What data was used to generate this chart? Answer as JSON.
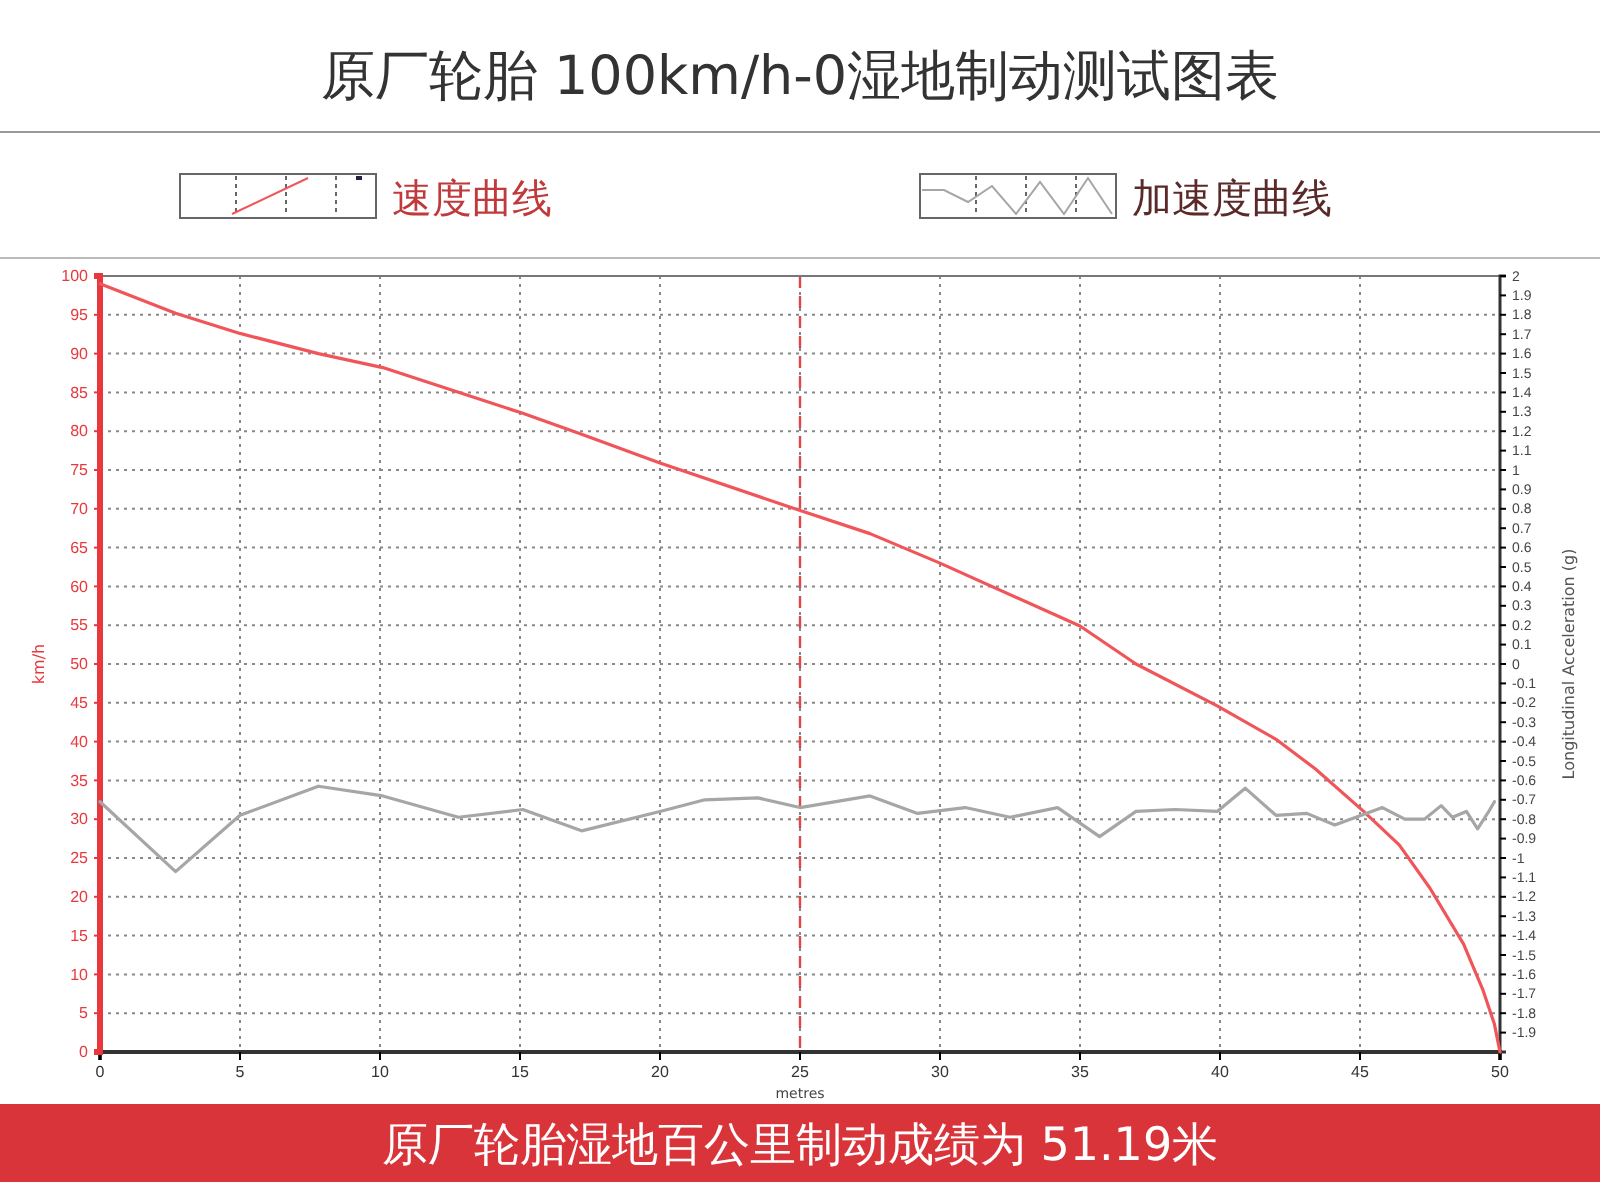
{
  "chart_data": {
    "type": "line",
    "title": "原厂轮胎 100km/h-0湿地制动测试图表",
    "xlabel": "metres",
    "ylabel": "km/h",
    "y2label": "Longitudinal Acceleration (g)",
    "annotations": [
      "原厂轮胎湿地百公里制动成绩为 51.19米"
    ],
    "legend": "top",
    "grid": true,
    "marker": "none",
    "line_style": "solid",
    "xlim": [
      0,
      50
    ],
    "xticks": [
      0,
      5,
      10,
      15,
      20,
      25,
      30,
      35,
      40,
      45,
      50
    ],
    "ylim": [
      0,
      100
    ],
    "yticks": [
      0,
      5,
      10,
      15,
      20,
      25,
      30,
      35,
      40,
      45,
      50,
      55,
      60,
      65,
      70,
      75,
      80,
      85,
      90,
      95,
      100
    ],
    "y2lim": [
      -2,
      2
    ],
    "y2ticks": [
      -1.9,
      -1.8,
      -1.7,
      -1.6,
      -1.5,
      -1.4,
      -1.3,
      -1.2,
      -1.1,
      -1,
      -0.9,
      -0.8,
      -0.7,
      -0.6,
      -0.5,
      -0.4,
      -0.3,
      -0.2,
      -0.1,
      0,
      0.1,
      0.2,
      0.3,
      0.4,
      0.5,
      0.6,
      0.7,
      0.8,
      0.9,
      1,
      1.1,
      1.2,
      1.3,
      1.4,
      1.5,
      1.6,
      1.7,
      1.8,
      1.9,
      2
    ],
    "ref_lines": [
      {
        "axis": "x",
        "value": 25,
        "label": null,
        "color": "#e0474c",
        "line_style": "dashed"
      }
    ],
    "series": [
      {
        "name": "速度曲线",
        "color": "#f0555a",
        "x": [
          0,
          2.7,
          5,
          7.8,
          10.1,
          15.1,
          17.2,
          20,
          24.9,
          27.5,
          30,
          35,
          37,
          39.9,
          42,
          43.4,
          45.1,
          46.4,
          47.5,
          48.7,
          49.4,
          49.8,
          50
        ],
        "values": [
          99,
          95.2,
          92.6,
          90,
          88.2,
          82.3,
          79.6,
          75.9,
          69.9,
          66.8,
          63,
          54.9,
          50,
          44.6,
          40.3,
          36.5,
          31.1,
          26.7,
          21.1,
          13.9,
          7.9,
          3.6,
          0
        ]
      },
      {
        "name": "加速度曲线",
        "color": "#a6a6a6",
        "axis": "y2",
        "x": [
          0,
          2.7,
          5,
          7.8,
          10.1,
          12.8,
          15.1,
          17.2,
          20,
          21.6,
          23.5,
          25,
          27.5,
          29.2,
          30.9,
          32.5,
          34.2,
          35.7,
          37,
          38.4,
          39.9,
          40.9,
          42,
          43.1,
          44.1,
          45.8,
          46.6,
          47.3,
          47.9,
          48.3,
          48.8,
          49.2,
          49.6,
          49.8
        ],
        "values": [
          -0.71,
          -1.07,
          -0.78,
          -0.63,
          -0.68,
          -0.79,
          -0.75,
          -0.86,
          -0.76,
          -0.7,
          -0.69,
          -0.74,
          -0.68,
          -0.77,
          -0.74,
          -0.79,
          -0.74,
          -0.89,
          -0.76,
          -0.75,
          -0.76,
          -0.64,
          -0.78,
          -0.77,
          -0.83,
          -0.74,
          -0.8,
          -0.8,
          -0.73,
          -0.79,
          -0.76,
          -0.85,
          -0.76,
          -0.71
        ]
      }
    ]
  }
}
